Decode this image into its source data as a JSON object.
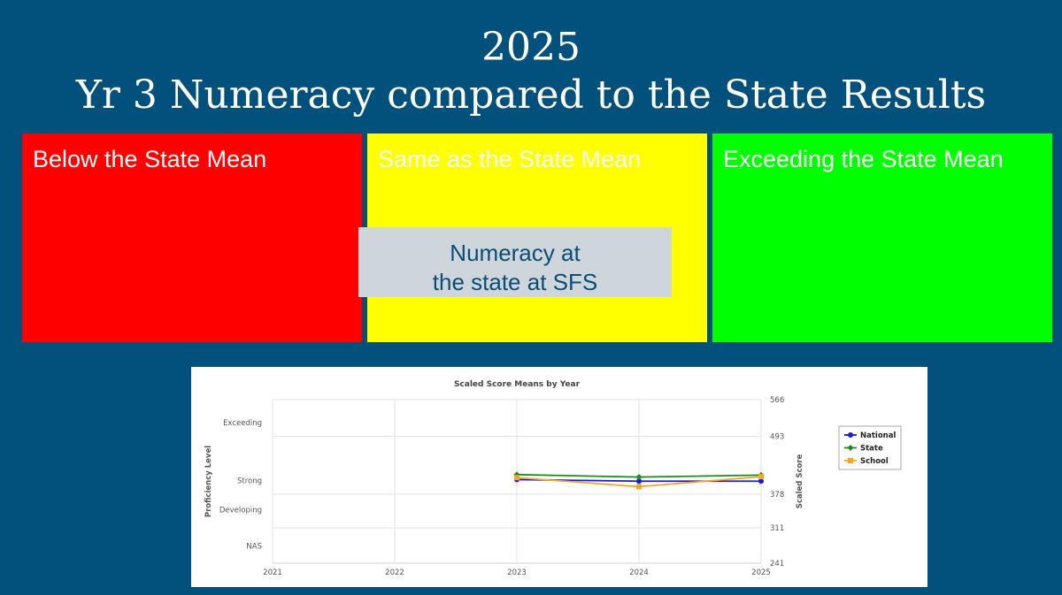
{
  "header": {
    "year": "2025",
    "title": "Yr 3 Numeracy compared to the State Results"
  },
  "panels": [
    {
      "label": "Below the State Mean",
      "color": "#ff0000"
    },
    {
      "label": "Same as the State Mean",
      "color": "#ffff00"
    },
    {
      "label": "Exceeding the State Mean",
      "color": "#00ff00"
    }
  ],
  "callout": {
    "line1": "Numeracy at",
    "line2": "the state at SFS"
  },
  "colors": {
    "background": "#01517c",
    "national": "#1a1adb",
    "state": "#1e8a1e",
    "school": "#f5a623"
  },
  "chart_data": {
    "type": "line",
    "title": "Scaled Score Means by Year",
    "x": [
      "2021",
      "2022",
      "2023",
      "2024",
      "2025"
    ],
    "xlim": [
      2021,
      2025
    ],
    "ylim": [
      241,
      566
    ],
    "right_axis_label": "Scaled Score",
    "right_ticks": [
      "566",
      "493",
      "378",
      "311",
      "241"
    ],
    "right_tick_values": [
      566,
      493,
      378,
      311,
      241
    ],
    "left_axis_label": "Proficiency Level",
    "left_ticks": [
      "Exceeding",
      "Strong",
      "Developing",
      "NAS"
    ],
    "left_tick_values": [
      520,
      405,
      347,
      275
    ],
    "grid": true,
    "legend_position": "right",
    "series": [
      {
        "name": "National",
        "x": [
          2023,
          2024,
          2025
        ],
        "values": [
          407,
          404,
          404
        ],
        "color": "#1a1adb",
        "marker": "circle"
      },
      {
        "name": "State",
        "x": [
          2023,
          2024,
          2025
        ],
        "values": [
          417,
          412,
          416
        ],
        "color": "#1e8a1e",
        "marker": "diamond"
      },
      {
        "name": "School",
        "x": [
          2023,
          2024,
          2025
        ],
        "values": [
          411,
          393,
          413
        ],
        "color": "#f5a623",
        "marker": "square"
      }
    ]
  }
}
